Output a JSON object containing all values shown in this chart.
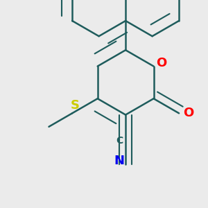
{
  "background_color": "#ebebeb",
  "bond_color": "#1e5c5c",
  "bond_width": 1.8,
  "atom_colors": {
    "O": "#ff0000",
    "N": "#0000ee",
    "S": "#cccc00",
    "C": "#1e5c5c"
  },
  "figsize": [
    3.0,
    3.0
  ],
  "dpi": 100
}
